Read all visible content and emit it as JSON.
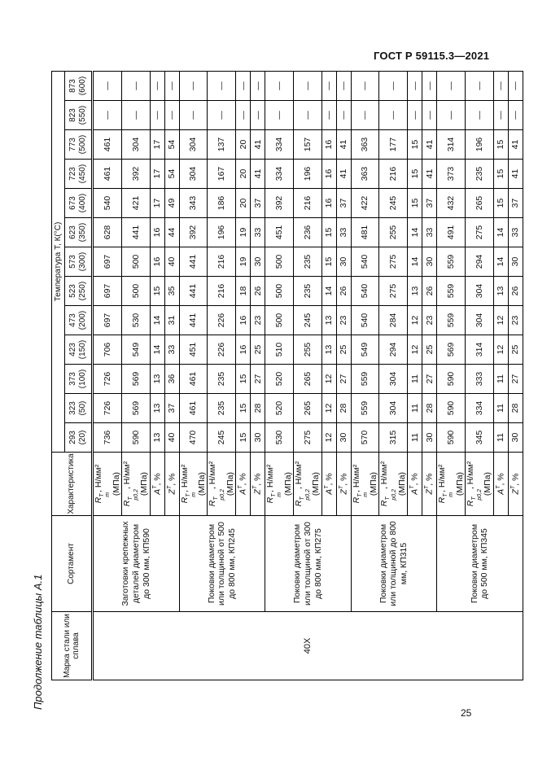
{
  "page": {
    "header_right": "ГОСТ Р 59115.3—2021",
    "caption": "Продолжение таблицы А.1",
    "page_number": "25"
  },
  "table": {
    "headers": {
      "grade": "Марка стали или сплава",
      "sortament": "Сортамент",
      "characteristic": "Характеристика",
      "temperature_band": "Температура Т, К(°С)"
    },
    "temperatures": [
      [
        "293",
        "(20)"
      ],
      [
        "323",
        "(50)"
      ],
      [
        "373",
        "(100)"
      ],
      [
        "423",
        "(150)"
      ],
      [
        "473",
        "(200)"
      ],
      [
        "523",
        "(250)"
      ],
      [
        "573",
        "(300)"
      ],
      [
        "623",
        "(350)"
      ],
      [
        "673",
        "(400)"
      ],
      [
        "723",
        "(450)"
      ],
      [
        "773",
        "(500)"
      ],
      [
        "823",
        "(550)"
      ],
      [
        "873",
        "(600)"
      ]
    ],
    "grade_value": "40Х",
    "char_labels": {
      "Rm": {
        "main": "R",
        "sup": "T",
        "sub": "m",
        "tail": ", Н/мм²",
        "paren": "(МПа)"
      },
      "Rp": {
        "main": "R",
        "sup": "T",
        "sub": "p0,2",
        "tail": ", Н/мм²",
        "paren": "(МПа)"
      },
      "A": {
        "main": "A",
        "sup": "T",
        "sub": "",
        "tail": ", %",
        "paren": ""
      },
      "Z": {
        "main": "Z",
        "sup": "T",
        "sub": "",
        "tail": ", %",
        "paren": ""
      }
    },
    "groups": [
      {
        "sortament": "Заготовки крепежных деталей диаметром до 300 мм, КП590",
        "rows": [
          {
            "char": "Rm",
            "values": [
              736,
              726,
              726,
              706,
              697,
              697,
              697,
              628,
              540,
              461,
              461,
              "—",
              "—"
            ]
          },
          {
            "char": "Rp",
            "values": [
              590,
              569,
              569,
              549,
              530,
              500,
              500,
              441,
              421,
              392,
              304,
              "—",
              "—"
            ]
          },
          {
            "char": "A",
            "values": [
              13,
              13,
              13,
              14,
              14,
              15,
              16,
              16,
              17,
              17,
              17,
              "—",
              "—"
            ]
          },
          {
            "char": "Z",
            "values": [
              40,
              37,
              36,
              33,
              31,
              35,
              40,
              44,
              49,
              54,
              54,
              "—",
              "—"
            ]
          }
        ]
      },
      {
        "sortament": "Поковки диаметром или толщиной от 500 до 800 мм, КП245",
        "rows": [
          {
            "char": "Rm",
            "values": [
              470,
              461,
              461,
              451,
              441,
              441,
              441,
              392,
              343,
              304,
              304,
              "—",
              "—"
            ]
          },
          {
            "char": "Rp",
            "values": [
              245,
              235,
              235,
              226,
              226,
              216,
              216,
              196,
              186,
              167,
              137,
              "—",
              "—"
            ]
          },
          {
            "char": "A",
            "values": [
              15,
              15,
              15,
              16,
              16,
              18,
              19,
              19,
              20,
              20,
              20,
              "—",
              "—"
            ]
          },
          {
            "char": "Z",
            "values": [
              30,
              28,
              27,
              25,
              23,
              26,
              30,
              33,
              37,
              41,
              41,
              "—",
              "—"
            ]
          }
        ]
      },
      {
        "sortament": "Поковки диаметром или толщиной от 300 до 800 мм, КП275",
        "rows": [
          {
            "char": "Rm",
            "values": [
              530,
              520,
              520,
              510,
              500,
              500,
              500,
              451,
              392,
              334,
              334,
              "—",
              "—"
            ]
          },
          {
            "char": "Rp",
            "values": [
              275,
              265,
              265,
              255,
              245,
              235,
              235,
              236,
              216,
              196,
              157,
              "—",
              "—"
            ]
          },
          {
            "char": "A",
            "values": [
              12,
              12,
              12,
              13,
              13,
              14,
              15,
              15,
              16,
              16,
              16,
              "—",
              "—"
            ]
          },
          {
            "char": "Z",
            "values": [
              30,
              28,
              27,
              25,
              23,
              26,
              30,
              33,
              37,
              41,
              41,
              "—",
              "—"
            ]
          }
        ]
      },
      {
        "sortament": "Поковки диаметром или толщиной до 800 мм, КП315",
        "rows": [
          {
            "char": "Rm",
            "values": [
              570,
              559,
              559,
              549,
              540,
              540,
              540,
              481,
              422,
              363,
              363,
              "—",
              "—"
            ]
          },
          {
            "char": "Rp",
            "values": [
              315,
              304,
              304,
              294,
              284,
              275,
              275,
              255,
              245,
              216,
              177,
              "—",
              "—"
            ]
          },
          {
            "char": "A",
            "values": [
              11,
              11,
              11,
              12,
              12,
              13,
              14,
              14,
              15,
              15,
              15,
              "—",
              "—"
            ]
          },
          {
            "char": "Z",
            "values": [
              30,
              28,
              27,
              25,
              23,
              26,
              30,
              33,
              37,
              41,
              41,
              "—",
              "—"
            ]
          }
        ]
      },
      {
        "sortament": "Поковки диаметром до 500 мм, КП345",
        "rows": [
          {
            "char": "Rm",
            "values": [
              590,
              590,
              590,
              569,
              559,
              559,
              559,
              491,
              432,
              373,
              314,
              "—",
              "—"
            ]
          },
          {
            "char": "Rp",
            "values": [
              345,
              334,
              333,
              314,
              304,
              304,
              294,
              275,
              265,
              235,
              196,
              "—",
              "—"
            ]
          },
          {
            "char": "A",
            "values": [
              11,
              11,
              11,
              12,
              12,
              13,
              14,
              14,
              15,
              15,
              15,
              "—",
              "—"
            ]
          },
          {
            "char": "Z",
            "values": [
              30,
              28,
              27,
              25,
              23,
              26,
              30,
              33,
              37,
              41,
              41,
              "—",
              "—"
            ]
          }
        ]
      }
    ]
  }
}
